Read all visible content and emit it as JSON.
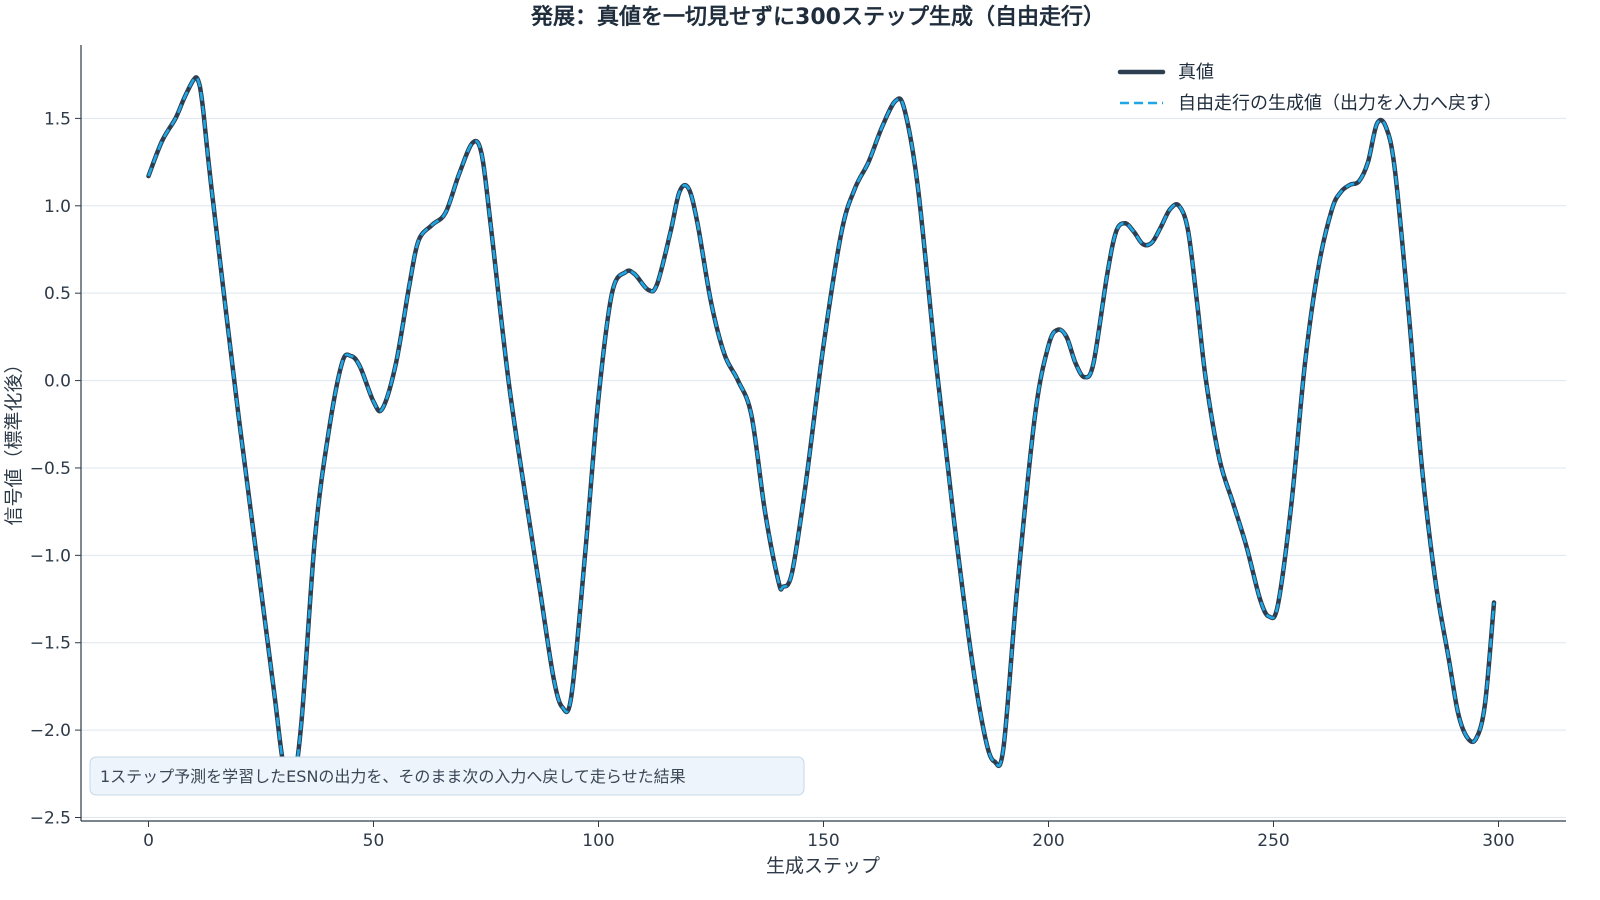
{
  "chart_data": {
    "type": "line",
    "title": "発展：真値を一切見せずに300ステップ生成（自由走行）",
    "xlabel": "生成ステップ",
    "ylabel": "信号値（標準化後）",
    "xlim": [
      -15,
      315
    ],
    "ylim": [
      -2.52,
      1.92
    ],
    "xticks": [
      0,
      50,
      100,
      150,
      200,
      250,
      300
    ],
    "yticks": [
      1.5,
      1.0,
      0.5,
      0.0,
      -0.5,
      -1.0,
      -1.5,
      -2.0,
      -2.5
    ],
    "ytick_labels": [
      "1.5",
      "1.0",
      "0.5",
      "0.0",
      "−0.5",
      "−1.0",
      "−1.5",
      "−2.0",
      "−2.5"
    ],
    "grid": "horizontal",
    "legend_position": "top-right",
    "annotation": "1ステップ予測を学習したESNの出力を、そのまま次の入力へ戻して走らせた結果",
    "keypoints": [
      [
        0,
        1.17
      ],
      [
        3,
        1.37
      ],
      [
        6,
        1.5
      ],
      [
        8,
        1.62
      ],
      [
        10,
        1.72
      ],
      [
        11,
        1.72
      ],
      [
        12,
        1.58
      ],
      [
        14,
        1.1
      ],
      [
        20,
        -0.2
      ],
      [
        25,
        -1.2
      ],
      [
        28,
        -1.8
      ],
      [
        30,
        -2.2
      ],
      [
        32,
        -2.3
      ],
      [
        34,
        -1.95
      ],
      [
        37,
        -0.9
      ],
      [
        40,
        -0.3
      ],
      [
        43,
        0.1
      ],
      [
        45,
        0.14
      ],
      [
        47,
        0.08
      ],
      [
        50,
        -0.12
      ],
      [
        52,
        -0.16
      ],
      [
        55,
        0.1
      ],
      [
        58,
        0.55
      ],
      [
        60,
        0.8
      ],
      [
        63,
        0.89
      ],
      [
        66,
        0.96
      ],
      [
        69,
        1.18
      ],
      [
        72,
        1.36
      ],
      [
        74,
        1.3
      ],
      [
        76,
        0.9
      ],
      [
        80,
        0.0
      ],
      [
        84,
        -0.7
      ],
      [
        87,
        -1.2
      ],
      [
        90,
        -1.7
      ],
      [
        92,
        -1.87
      ],
      [
        94,
        -1.8
      ],
      [
        97,
        -1.0
      ],
      [
        100,
        -0.1
      ],
      [
        103,
        0.5
      ],
      [
        106,
        0.62
      ],
      [
        108,
        0.61
      ],
      [
        111,
        0.52
      ],
      [
        113,
        0.55
      ],
      [
        116,
        0.85
      ],
      [
        118,
        1.08
      ],
      [
        120,
        1.1
      ],
      [
        122,
        0.9
      ],
      [
        125,
        0.45
      ],
      [
        128,
        0.15
      ],
      [
        131,
        0.0
      ],
      [
        134,
        -0.2
      ],
      [
        137,
        -0.75
      ],
      [
        140,
        -1.15
      ],
      [
        141,
        -1.18
      ],
      [
        143,
        -1.1
      ],
      [
        146,
        -0.6
      ],
      [
        150,
        0.2
      ],
      [
        154,
        0.85
      ],
      [
        157,
        1.1
      ],
      [
        160,
        1.25
      ],
      [
        163,
        1.45
      ],
      [
        166,
        1.6
      ],
      [
        168,
        1.55
      ],
      [
        171,
        1.1
      ],
      [
        175,
        0.1
      ],
      [
        179,
        -0.8
      ],
      [
        183,
        -1.6
      ],
      [
        186,
        -2.05
      ],
      [
        188,
        -2.18
      ],
      [
        190,
        -2.1
      ],
      [
        193,
        -1.2
      ],
      [
        197,
        -0.2
      ],
      [
        200,
        0.2
      ],
      [
        202,
        0.29
      ],
      [
        204,
        0.25
      ],
      [
        206,
        0.1
      ],
      [
        208,
        0.02
      ],
      [
        210,
        0.1
      ],
      [
        213,
        0.6
      ],
      [
        215,
        0.85
      ],
      [
        217,
        0.9
      ],
      [
        219,
        0.85
      ],
      [
        221,
        0.78
      ],
      [
        223,
        0.79
      ],
      [
        225,
        0.88
      ],
      [
        227,
        0.98
      ],
      [
        229,
        1.0
      ],
      [
        231,
        0.86
      ],
      [
        233,
        0.45
      ],
      [
        235,
        0.0
      ],
      [
        238,
        -0.45
      ],
      [
        241,
        -0.7
      ],
      [
        244,
        -0.95
      ],
      [
        247,
        -1.25
      ],
      [
        249,
        -1.35
      ],
      [
        251,
        -1.28
      ],
      [
        254,
        -0.7
      ],
      [
        257,
        0.1
      ],
      [
        260,
        0.65
      ],
      [
        263,
        0.98
      ],
      [
        265,
        1.08
      ],
      [
        267,
        1.12
      ],
      [
        269,
        1.14
      ],
      [
        271,
        1.25
      ],
      [
        273,
        1.47
      ],
      [
        275,
        1.45
      ],
      [
        277,
        1.2
      ],
      [
        280,
        0.4
      ],
      [
        283,
        -0.5
      ],
      [
        286,
        -1.15
      ],
      [
        289,
        -1.6
      ],
      [
        291,
        -1.9
      ],
      [
        293,
        -2.04
      ],
      [
        295,
        -2.05
      ],
      [
        297,
        -1.85
      ],
      [
        299,
        -1.27
      ]
    ],
    "series": [
      {
        "name": "真値",
        "color": "#2c3e50",
        "style": "solid"
      },
      {
        "name": "自由走行の生成値（出力を入力へ戻す）",
        "color": "#1ea7e4",
        "style": "dashed"
      }
    ]
  }
}
